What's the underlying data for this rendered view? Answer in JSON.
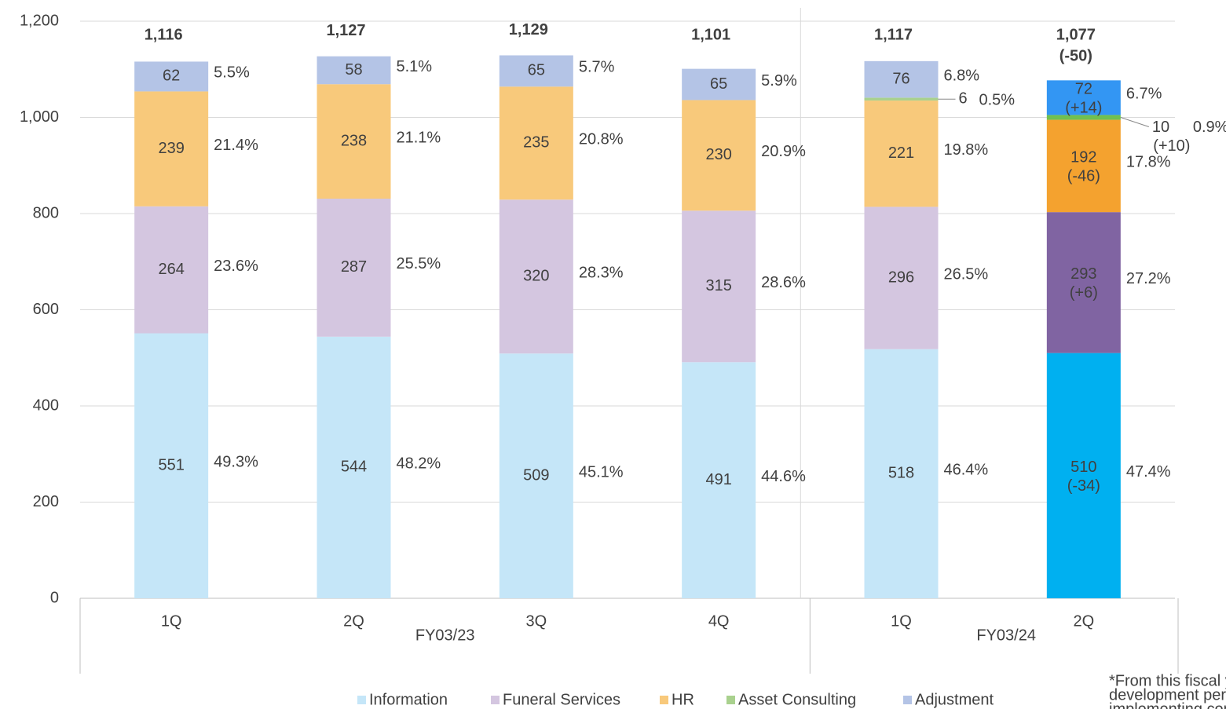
{
  "chart_data": {
    "type": "stacked_bar",
    "categories": [
      "1Q",
      "2Q",
      "3Q",
      "4Q",
      "1Q",
      "2Q"
    ],
    "groups": [
      {
        "label": "FY03/23",
        "count": 4
      },
      {
        "label": "FY03/24",
        "count": 2
      }
    ],
    "highlight": 5,
    "series": [
      {
        "name": "Information",
        "color": "#c5e6f8",
        "highlight_color": "#00b0f0",
        "values": [
          551,
          544,
          509,
          491,
          518,
          510
        ],
        "shares": [
          "49.3%",
          "48.2%",
          "45.1%",
          "44.6%",
          "46.4%",
          "47.4%"
        ],
        "changes": [
          null,
          null,
          null,
          null,
          null,
          "(-34)"
        ]
      },
      {
        "name": "Funeral Services",
        "color": "#d4c6e0",
        "highlight_color": "#8064a2",
        "values": [
          264,
          287,
          320,
          315,
          296,
          293
        ],
        "shares": [
          "23.6%",
          "25.5%",
          "28.3%",
          "28.6%",
          "26.5%",
          "27.2%"
        ],
        "changes": [
          null,
          null,
          null,
          null,
          null,
          "(+6)"
        ]
      },
      {
        "name": "HR",
        "color": "#f8c97b",
        "highlight_color": "#f4a22f",
        "values": [
          239,
          238,
          235,
          230,
          221,
          192
        ],
        "shares": [
          "21.4%",
          "21.1%",
          "20.8%",
          "20.9%",
          "19.8%",
          "17.8%"
        ],
        "changes": [
          null,
          null,
          null,
          null,
          null,
          "(-46)"
        ]
      },
      {
        "name": "Asset Consulting",
        "color": "#a9d18e",
        "highlight_color": "#70c050",
        "values": [
          null,
          null,
          null,
          null,
          6,
          10
        ],
        "shares": [
          null,
          null,
          null,
          null,
          "0.5%",
          "0.9%"
        ],
        "changes": [
          null,
          null,
          null,
          null,
          null,
          "(+10)"
        ]
      },
      {
        "name": "Adjustment",
        "color": "#b4c4e6",
        "highlight_color": "#3396f3",
        "values": [
          62,
          58,
          65,
          65,
          76,
          72
        ],
        "shares": [
          "5.5%",
          "5.1%",
          "5.7%",
          "5.9%",
          "6.8%",
          "6.7%"
        ],
        "changes": [
          null,
          null,
          null,
          null,
          null,
          "(+14)"
        ]
      }
    ],
    "totals": [
      1116,
      1127,
      1129,
      1101,
      1117,
      1077
    ],
    "total_labels": [
      "1,116",
      "1,127",
      "1,129",
      "1,101",
      "1,117",
      "1,077"
    ],
    "total_changes": [
      null,
      null,
      null,
      null,
      null,
      "(-50)"
    ],
    "ylim": [
      0,
      1200
    ],
    "yticks": [
      0,
      200,
      400,
      600,
      800,
      {
        "value": 1000,
        "label": "1,000"
      },
      {
        "value": 1200,
        "label": "1,200"
      }
    ],
    "grid": true,
    "legend": "bottom",
    "note": [
      "*From this fiscal year,",
      "development personne",
      "implementing compan"
    ]
  }
}
